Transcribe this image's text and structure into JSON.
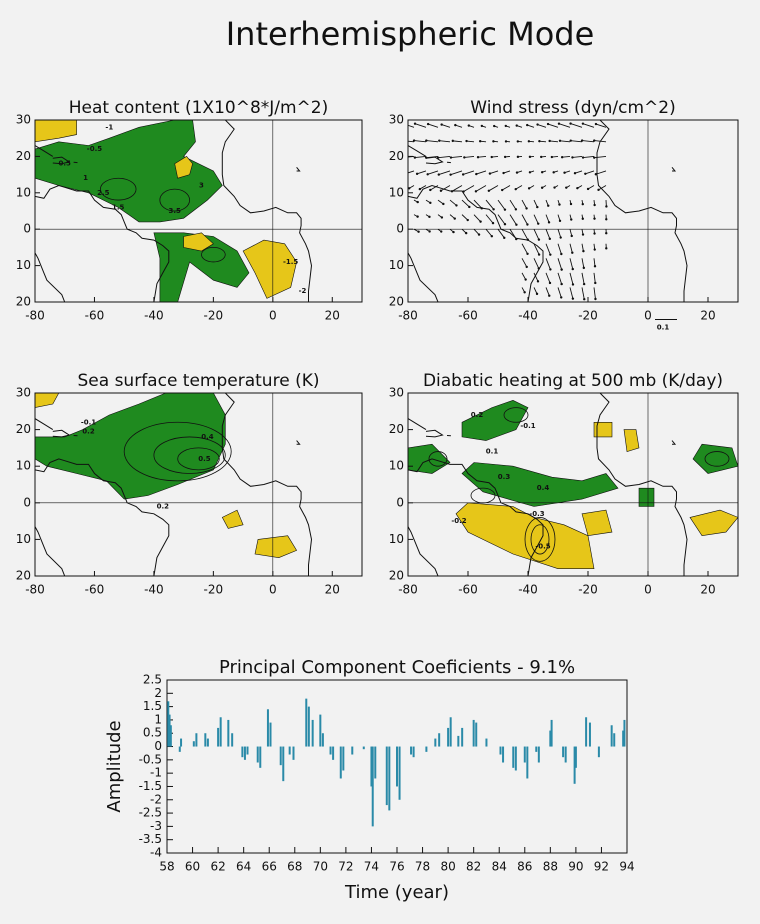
{
  "title": "Interhemispheric Mode",
  "chart_data": [
    {
      "type": "map",
      "title": "Heat content (1X10^8*J/m^2)",
      "xlim": [
        -80,
        30
      ],
      "ylim": [
        -20,
        30
      ],
      "xticks": [
        -80,
        -60,
        -40,
        -20,
        0,
        20
      ],
      "yticks": [
        30,
        20,
        10,
        0,
        {
          "value": -10,
          "label": "10"
        },
        {
          "value": -20,
          "label": "20"
        }
      ],
      "annotations": [
        "-1",
        "-0.5",
        "0.5",
        "1",
        "1.5",
        "2.5",
        "3",
        "3.5",
        "-1.5",
        "-2"
      ]
    },
    {
      "type": "map",
      "title": "Wind stress (dyn/cm^2)",
      "xlim": [
        -80,
        30
      ],
      "ylim": [
        -20,
        30
      ],
      "xticks": [
        -80,
        -60,
        -40,
        -20,
        0,
        20
      ],
      "yticks": [
        30,
        20,
        10,
        0,
        {
          "value": -10,
          "label": "10"
        },
        {
          "value": -20,
          "label": "20"
        }
      ],
      "annotations": [
        "0.1"
      ]
    },
    {
      "type": "map",
      "title": "Sea surface temperature (K)",
      "xlim": [
        -80,
        30
      ],
      "ylim": [
        -20,
        30
      ],
      "xticks": [
        -80,
        -60,
        -40,
        -20,
        0,
        20
      ],
      "yticks": [
        30,
        20,
        10,
        0,
        {
          "value": -10,
          "label": "10"
        },
        {
          "value": -20,
          "label": "20"
        }
      ],
      "annotations": [
        "-0.1",
        "0.2",
        "0.4",
        "0.5",
        "0.2"
      ]
    },
    {
      "type": "map",
      "title": "Diabatic heating at 500 mb (K/day)",
      "xlim": [
        -80,
        30
      ],
      "ylim": [
        -20,
        30
      ],
      "xticks": [
        -80,
        -60,
        -40,
        -20,
        0,
        20
      ],
      "yticks": [
        30,
        20,
        10,
        0,
        {
          "value": -10,
          "label": "10"
        },
        {
          "value": -20,
          "label": "20"
        }
      ],
      "annotations": [
        "0.2",
        "-0.1",
        "0.1",
        "-0.3",
        "0.4",
        "-0.5",
        "-0.2",
        "0.3"
      ]
    },
    {
      "type": "bar",
      "title": "Principal Component Coeficients - 9.1%",
      "xlabel": "Time (year)",
      "ylabel": "Amplitude",
      "color": "#2a8aa8",
      "xlim": [
        58,
        94
      ],
      "ylim": [
        -4,
        2.5
      ],
      "xticks": [
        58,
        60,
        62,
        64,
        66,
        68,
        70,
        72,
        74,
        76,
        78,
        80,
        82,
        84,
        86,
        88,
        90,
        92,
        94
      ],
      "yticks": [
        2.5,
        2,
        1.5,
        1,
        0.5,
        0,
        -0.5,
        -1,
        -1.5,
        -2,
        -2.5,
        -3,
        -3.5,
        -4
      ],
      "x": [
        58.1,
        58.2,
        58.3,
        59.0,
        59.1,
        60.1,
        60.3,
        61.0,
        61.2,
        62.0,
        62.2,
        62.8,
        63.1,
        63.9,
        64.1,
        64.3,
        65.1,
        65.3,
        65.9,
        66.1,
        66.9,
        67.1,
        67.6,
        67.9,
        68.9,
        69.1,
        69.4,
        70.0,
        70.2,
        70.8,
        71.0,
        71.6,
        71.8,
        72.5,
        73.4,
        74.0,
        74.1,
        74.3,
        75.2,
        75.4,
        76.0,
        76.2,
        77.1,
        77.3,
        78.3,
        79.0,
        79.3,
        80.0,
        80.2,
        80.8,
        81.1,
        82.0,
        82.2,
        83.0,
        84.1,
        84.3,
        85.1,
        85.3,
        86.0,
        86.2,
        86.9,
        87.1,
        88.0,
        88.1,
        89.0,
        89.2,
        89.9,
        90.0,
        90.8,
        91.1,
        91.8,
        92.8,
        93.0,
        93.7,
        93.8
      ],
      "values": [
        1.7,
        1.2,
        0.8,
        -0.2,
        0.3,
        0.2,
        0.5,
        0.5,
        0.3,
        0.7,
        1.1,
        1.0,
        0.5,
        -0.4,
        -0.5,
        -0.3,
        -0.6,
        -0.8,
        1.4,
        0.9,
        -0.7,
        -1.3,
        -0.3,
        -0.5,
        1.8,
        1.5,
        1.0,
        1.2,
        0.5,
        -0.3,
        -0.5,
        -1.2,
        -0.9,
        -0.3,
        -0.1,
        -1.5,
        -3.0,
        -1.2,
        -2.2,
        -2.4,
        -1.5,
        -2.0,
        -0.3,
        -0.4,
        -0.2,
        0.3,
        0.5,
        0.7,
        1.1,
        0.4,
        0.7,
        1.0,
        0.9,
        0.3,
        -0.3,
        -0.6,
        -0.8,
        -0.9,
        -0.6,
        -1.2,
        -0.2,
        -0.6,
        0.6,
        1.0,
        -0.4,
        -0.6,
        -1.4,
        -0.8,
        1.1,
        0.9,
        -0.4,
        0.8,
        0.5,
        0.6,
        1.0
      ]
    }
  ]
}
